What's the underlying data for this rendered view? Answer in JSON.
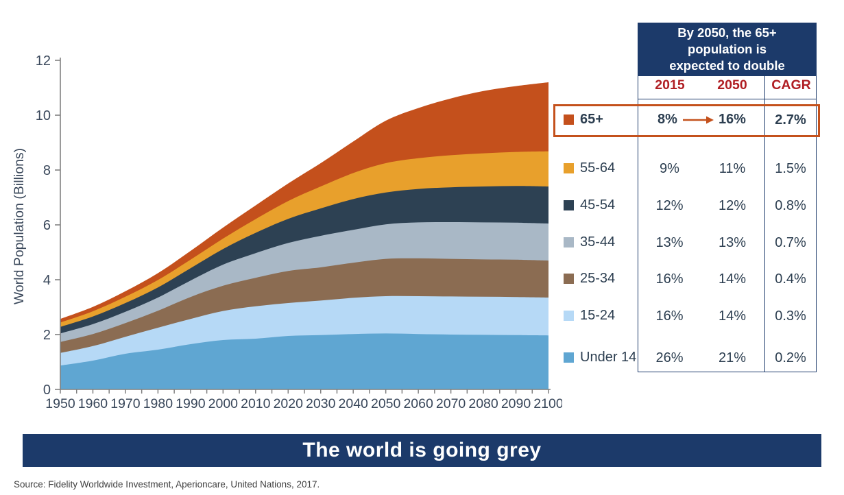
{
  "theme": {
    "navy": "#1C3A6A",
    "red": "#B01E23",
    "accent": "#C4511C",
    "axis_text": "#39475A",
    "text": "#2C3E50",
    "axis_line": "#808080"
  },
  "chart_data": {
    "type": "area",
    "stacked": true,
    "title": "The world is going grey",
    "xlabel": "",
    "ylabel": "World Population (Billions)",
    "xlim": [
      1950,
      2100
    ],
    "ylim": [
      0,
      12
    ],
    "y_ticks": [
      0,
      2,
      4,
      6,
      8,
      10,
      12
    ],
    "x_minor_tick_step": 5,
    "x_label_step": 10,
    "grid": false,
    "legend_position": "right",
    "x": [
      1950,
      1960,
      1970,
      1980,
      1990,
      2000,
      2010,
      2020,
      2030,
      2040,
      2050,
      2060,
      2070,
      2080,
      2090,
      2100
    ],
    "series": [
      {
        "name": "Under 14",
        "color": "#5FA6D2",
        "values": [
          0.87,
          1.05,
          1.3,
          1.45,
          1.65,
          1.8,
          1.85,
          1.95,
          1.98,
          2.02,
          2.04,
          2.02,
          2.0,
          1.99,
          1.98,
          1.97
        ]
      },
      {
        "name": "15-24",
        "color": "#B6D9F6",
        "values": [
          0.46,
          0.53,
          0.62,
          0.8,
          0.92,
          1.06,
          1.18,
          1.2,
          1.26,
          1.32,
          1.36,
          1.38,
          1.39,
          1.39,
          1.39,
          1.38
        ]
      },
      {
        "name": "25-34",
        "color": "#8B6C52",
        "values": [
          0.4,
          0.44,
          0.5,
          0.62,
          0.8,
          0.92,
          1.04,
          1.17,
          1.21,
          1.28,
          1.36,
          1.38,
          1.37,
          1.36,
          1.36,
          1.35
        ]
      },
      {
        "name": "35-44",
        "color": "#A9B8C6",
        "values": [
          0.31,
          0.36,
          0.41,
          0.48,
          0.6,
          0.77,
          0.9,
          1.02,
          1.15,
          1.2,
          1.26,
          1.31,
          1.34,
          1.35,
          1.35,
          1.35
        ]
      },
      {
        "name": "45-54",
        "color": "#2D4153",
        "values": [
          0.24,
          0.28,
          0.32,
          0.37,
          0.45,
          0.57,
          0.74,
          0.88,
          1.0,
          1.12,
          1.16,
          1.22,
          1.27,
          1.31,
          1.34,
          1.35
        ]
      },
      {
        "name": "55-64",
        "color": "#E8A02C",
        "values": [
          0.16,
          0.19,
          0.23,
          0.27,
          0.31,
          0.38,
          0.5,
          0.65,
          0.8,
          0.95,
          1.07,
          1.12,
          1.17,
          1.21,
          1.24,
          1.28
        ]
      },
      {
        "name": "65+",
        "color": "#C4501C",
        "values": [
          0.13,
          0.16,
          0.2,
          0.25,
          0.32,
          0.4,
          0.5,
          0.64,
          0.85,
          1.15,
          1.55,
          1.83,
          2.07,
          2.27,
          2.4,
          2.52
        ]
      }
    ]
  },
  "table": {
    "header": "By 2050, the 65+\npopulation is\nexpected to double",
    "columns": [
      "2015",
      "2050",
      "CAGR"
    ],
    "rows": [
      {
        "label": "65+",
        "color": "#C4501C",
        "v2015": "8%",
        "v2050": "16%",
        "cagr": "2.7%",
        "highlight": true
      },
      {
        "label": "55-64",
        "color": "#E8A02C",
        "v2015": "9%",
        "v2050": "11%",
        "cagr": "1.5%",
        "highlight": false
      },
      {
        "label": "45-54",
        "color": "#2D4153",
        "v2015": "12%",
        "v2050": "12%",
        "cagr": "0.8%",
        "highlight": false
      },
      {
        "label": "35-44",
        "color": "#A9B8C6",
        "v2015": "13%",
        "v2050": "13%",
        "cagr": "0.7%",
        "highlight": false
      },
      {
        "label": "25-34",
        "color": "#8B6C52",
        "v2015": "16%",
        "v2050": "14%",
        "cagr": "0.4%",
        "highlight": false
      },
      {
        "label": "15-24",
        "color": "#B6D9F6",
        "v2015": "16%",
        "v2050": "14%",
        "cagr": "0.3%",
        "highlight": false
      },
      {
        "label": "Under 14",
        "color": "#5FA6D2",
        "v2015": "26%",
        "v2050": "21%",
        "cagr": "0.2%",
        "highlight": false
      }
    ]
  },
  "footer": {
    "title": "The world is going grey",
    "source": "Source: Fidelity Worldwide Investment, Aperioncare, United Nations, 2017."
  }
}
